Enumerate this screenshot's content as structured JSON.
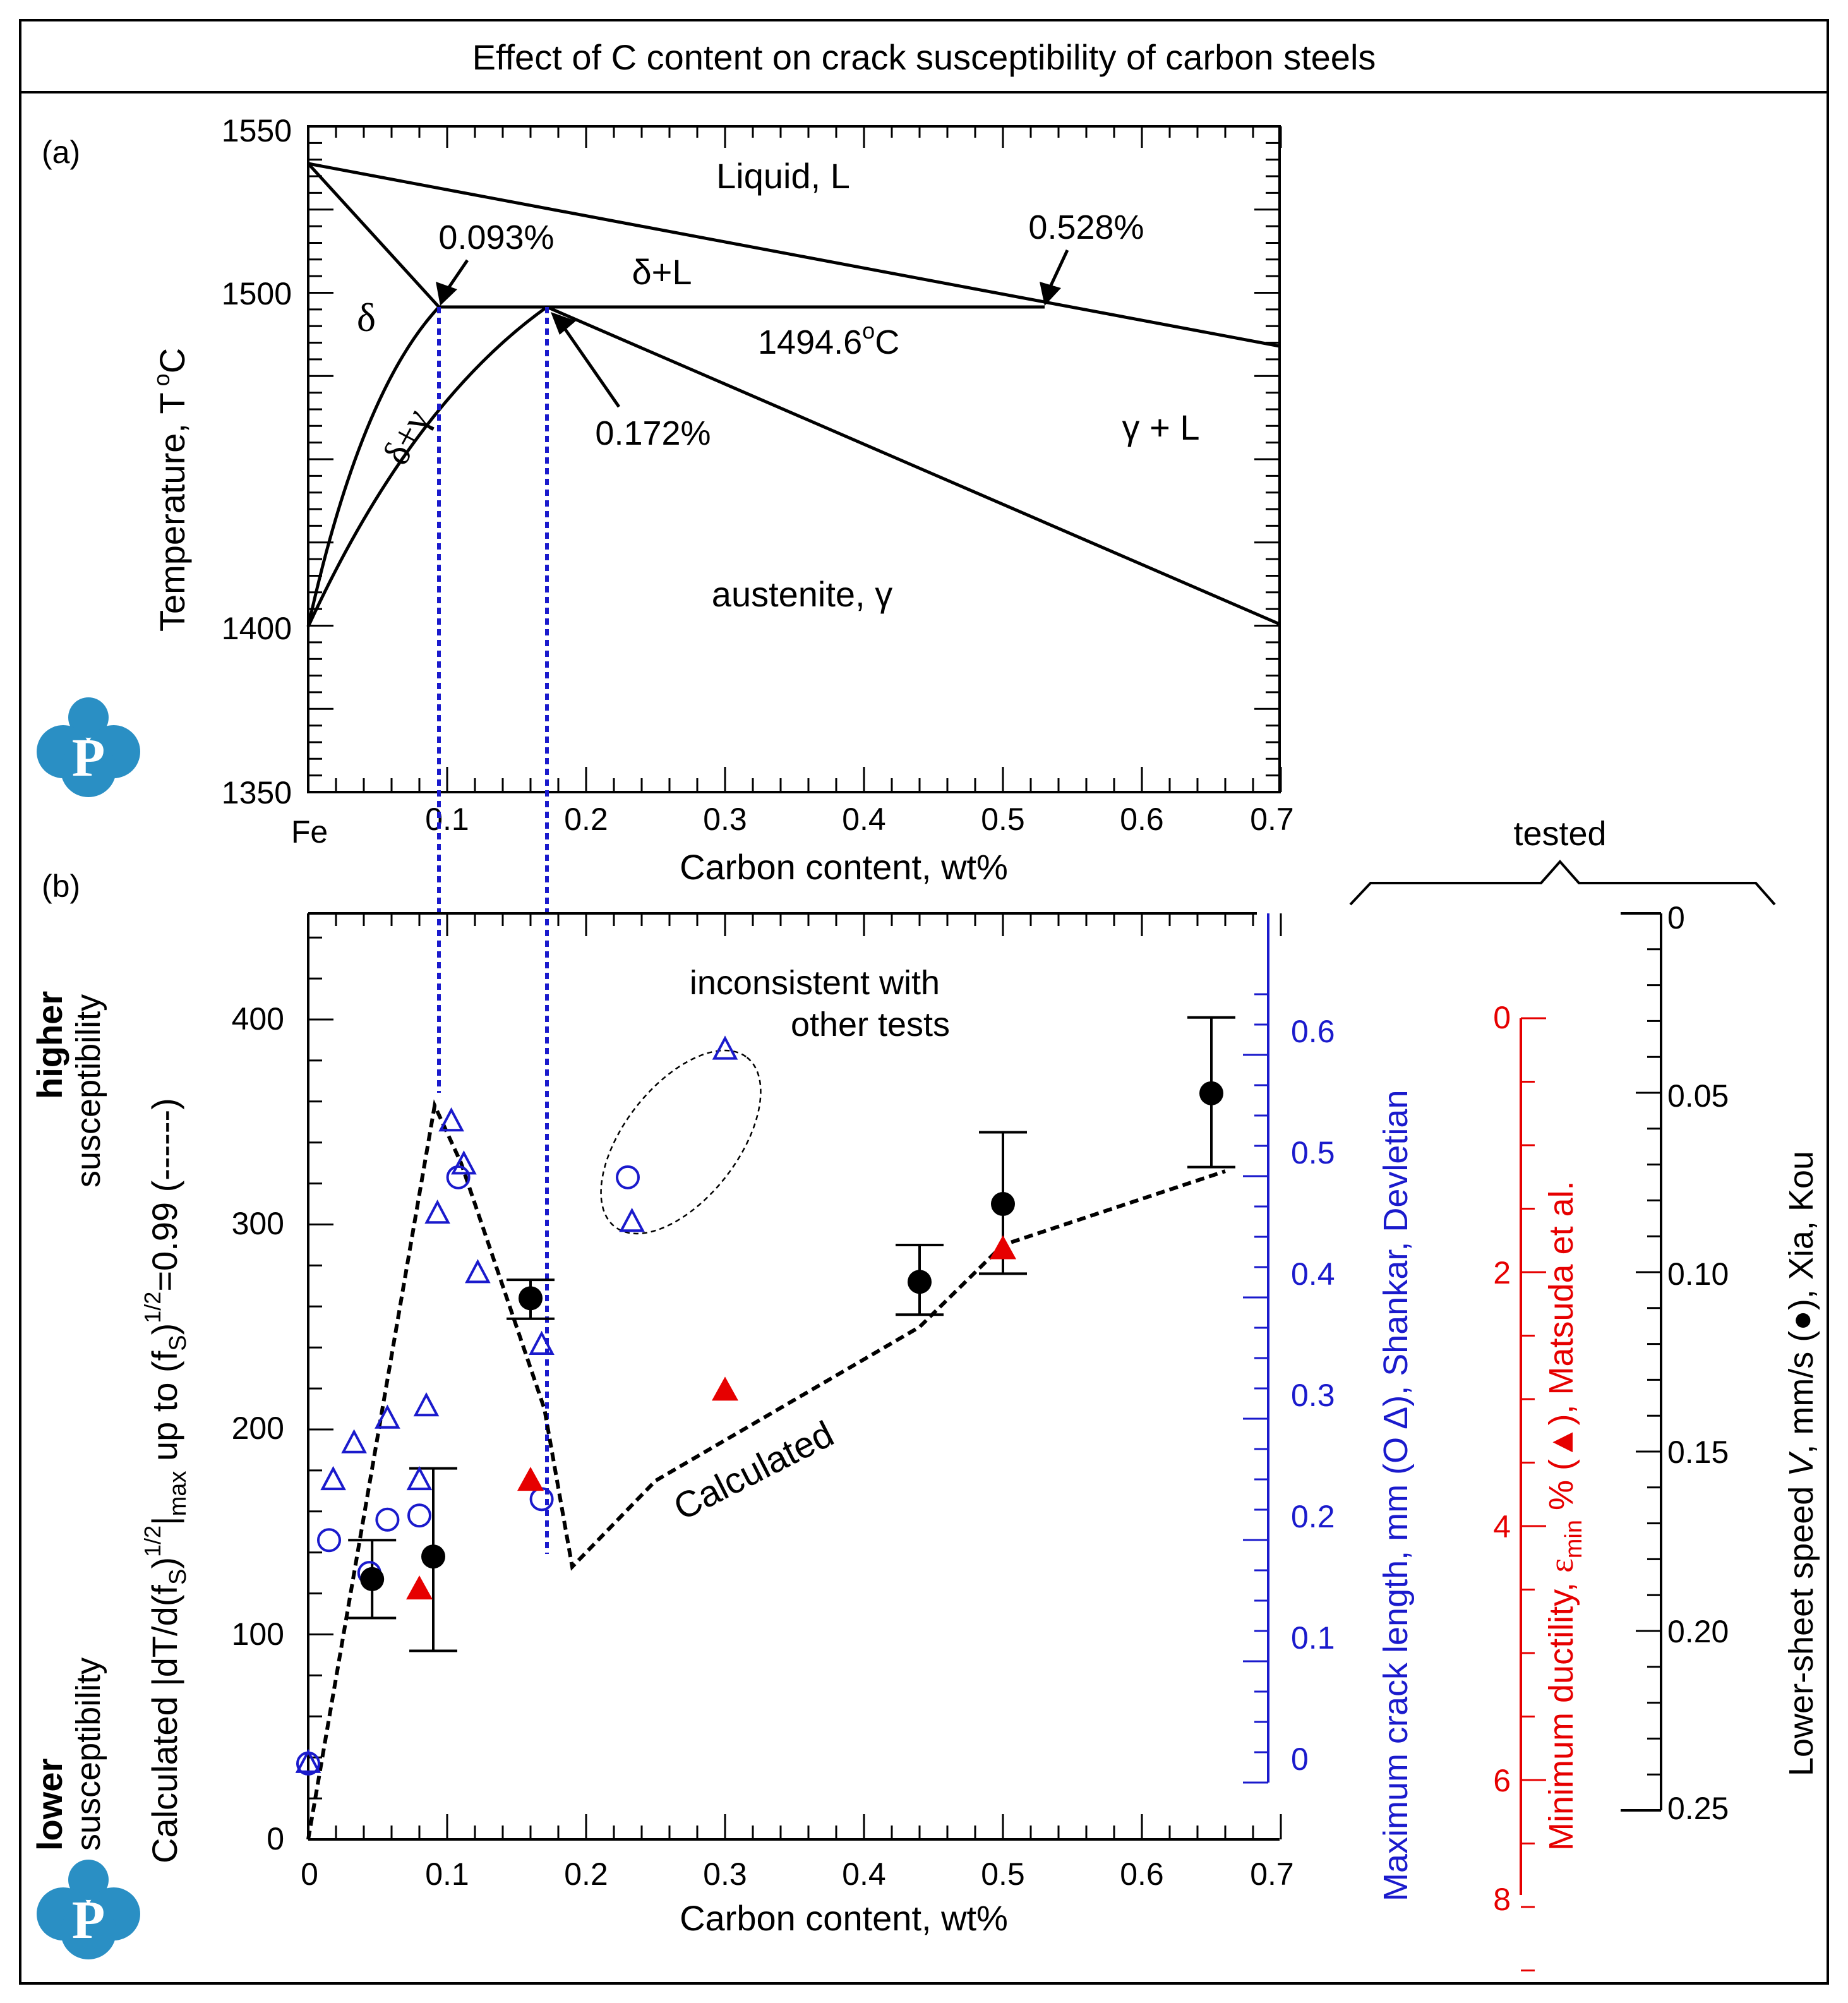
{
  "title": "Effect of C content on crack susceptibility of carbon steels",
  "colors": {
    "black": "#000000",
    "blue": "#1a1acc",
    "red": "#e60000",
    "logo": "#2a8fc4"
  },
  "logo_letter": "P",
  "phase_diagram": {
    "panel_label": "(a)",
    "ylabel": "Temperature, T",
    "ylabel_sup": "o",
    "ylabel_suffix": "C",
    "xlabel": "Carbon content, wt%",
    "x_ticks": [
      "Fe",
      "0.1",
      "0.2",
      "0.3",
      "0.4",
      "0.5",
      "0.6",
      "0.7"
    ],
    "y_ticks": [
      "1550",
      "1500",
      "1400",
      "1350"
    ],
    "region_liquid": "Liquid, L",
    "region_delta": "δ",
    "region_delta_gamma": "δ+γ",
    "region_delta_liquid": "δ+L",
    "region_gamma_liquid": "γ + L",
    "region_austenite": "austenite, γ",
    "ann_0093": "0.093%",
    "ann_0528": "0.528%",
    "ann_0172": "0.172%",
    "peritectic_temp": "1494.6",
    "peritectic_sup": "o",
    "peritectic_unit": "C"
  },
  "chart_data": {
    "type": "scatter",
    "panel_label": "(b)",
    "xlabel": "Carbon content, wt%",
    "x_ticks": [
      "0",
      "0.1",
      "0.2",
      "0.3",
      "0.4",
      "0.5",
      "0.6",
      "0.7"
    ],
    "xlim": [
      0,
      0.7
    ],
    "ylabel_left": {
      "p1": "Calculated |dT/d(f",
      "s1": "S",
      "p2": ")",
      "sup1": "1/2",
      "p3": "|",
      "sub_max": "max",
      "p4": " up to (f",
      "s2": "S",
      "p5": ")",
      "sup2": "1/2",
      "p6": "=0.99 (------)"
    },
    "left_axis": {
      "ticks": [
        "0",
        "100",
        "200",
        "300",
        "400"
      ],
      "ylim": [
        0,
        450
      ]
    },
    "blue_axis": {
      "label_prefix": "Maximum crack length, mm (",
      "sym_circle": "O",
      "sym_triangle": "Δ",
      "label_suffix": "), Shankar, Devletian",
      "ticks": [
        "0",
        "0.1",
        "0.2",
        "0.3",
        "0.4",
        "0.5",
        "0.6"
      ]
    },
    "red_axis": {
      "label_prefix": "Minimum ductility, ",
      "eps": "ε",
      "eps_sub": "min",
      "label_mid": " % (",
      "sym": "▲",
      "label_suffix": "), Matsuda et al.",
      "ticks": [
        "0",
        "2",
        "4",
        "6",
        "8"
      ]
    },
    "black_axis": {
      "label_prefix": "Lower-sheet speed ",
      "v": "V",
      "label_mid": ", mm/s (",
      "sym": "●",
      "label_suffix": "), Xia, Kou",
      "ticks": [
        "0",
        "0.05",
        "0.10",
        "0.15",
        "0.20",
        "0.25"
      ]
    },
    "tested_label": "tested",
    "susceptibility": {
      "higher": "higher",
      "higher_sub": "susceptibility",
      "lower": "lower",
      "lower_sub": "susceptibility"
    },
    "annotations": {
      "inconsistent_line1": "inconsistent with",
      "inconsistent_line2": "other tests",
      "calculated": "Calculated"
    },
    "calculated_line": {
      "x": [
        0.0,
        0.091,
        0.11,
        0.17,
        0.19,
        0.25,
        0.44,
        0.5,
        0.66
      ],
      "y": [
        0,
        358,
        330,
        210,
        133,
        175,
        250,
        290,
        326
      ]
    },
    "series_circles_blue": {
      "x": [
        0.0,
        0.015,
        0.044,
        0.057,
        0.08,
        0.108,
        0.168,
        0.23
      ],
      "y": [
        37,
        146,
        130,
        156,
        158,
        323,
        166,
        323
      ]
    },
    "series_triangles_blue": {
      "x": [
        0.0,
        0.018,
        0.033,
        0.057,
        0.08,
        0.085,
        0.093,
        0.103,
        0.112,
        0.122,
        0.168,
        0.233,
        0.3
      ],
      "y": [
        37,
        175,
        193,
        205,
        175,
        211,
        305,
        350,
        329,
        276,
        241,
        301,
        385
      ]
    },
    "series_red_triangles": {
      "x": [
        0.08,
        0.16,
        0.3,
        0.5
      ],
      "y": [
        122,
        175,
        219,
        288
      ]
    },
    "series_black_circles": {
      "x": [
        0.046,
        0.09,
        0.16,
        0.44,
        0.5,
        0.65
      ],
      "y": [
        127,
        138,
        264,
        272,
        310,
        364
      ],
      "err_low": [
        108,
        92,
        254,
        256,
        276,
        328
      ],
      "err_high": [
        146,
        181,
        273,
        290,
        345,
        401
      ]
    }
  }
}
